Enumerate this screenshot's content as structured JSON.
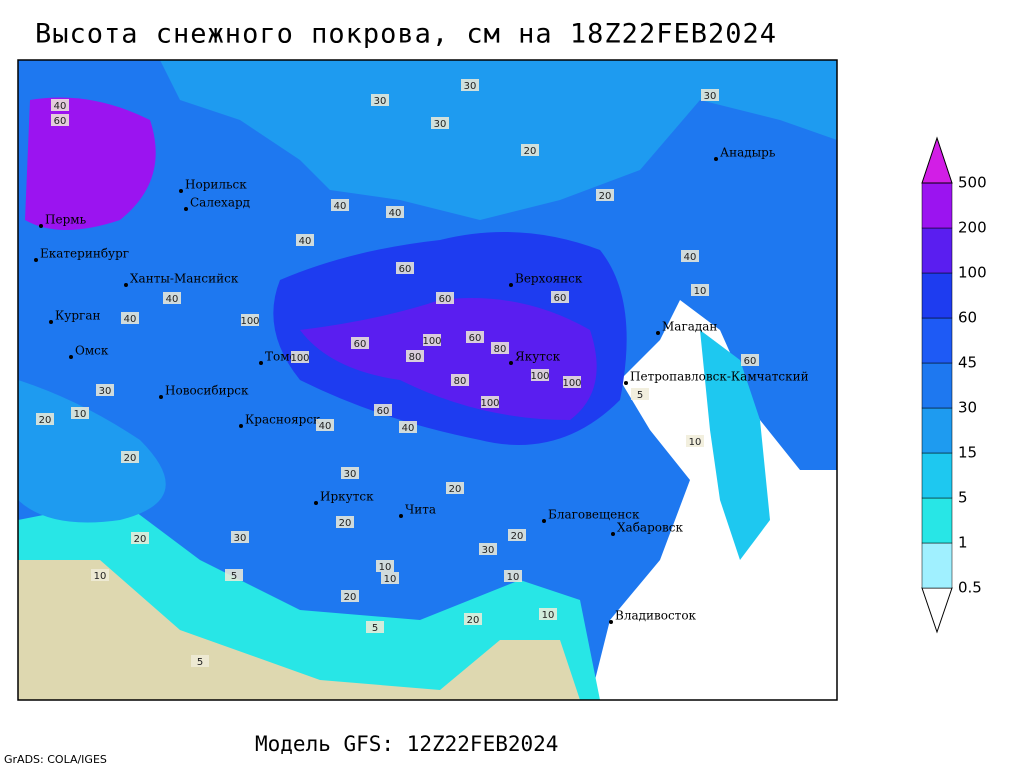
{
  "header": {
    "title": "Высота снежного покрова, см на 18Z22FEB2024"
  },
  "footer": {
    "model": "Модель GFS: 12Z22FEB2024",
    "credit": "GrADS: COLA/IGES"
  },
  "legend": {
    "levels": [
      0.5,
      1,
      5,
      15,
      30,
      45,
      60,
      100,
      200,
      500
    ],
    "colors": [
      "#ffffff",
      "#a0f0ff",
      "#28e6e6",
      "#1ec8f0",
      "#1e9bf0",
      "#1e78f0",
      "#1e5af5",
      "#1e3cf0",
      "#5a1ef0",
      "#9b14f0",
      "#d21ee6"
    ]
  },
  "cities": [
    "Норильск",
    "Салехард",
    "Пермь",
    "Екатеринбург",
    "Ханты-Мансийск",
    "Курган",
    "Омск",
    "Новосибирск",
    "Томск",
    "Красноярск",
    "Иркутск",
    "Чита",
    "Благовещенск",
    "Хабаровск",
    "Владивосток",
    "Якутск",
    "Верхоянск",
    "Магадан",
    "Петропавловск-Камчатский",
    "Анадырь"
  ],
  "contour_labels": [
    30,
    30,
    30,
    20,
    30,
    20,
    40,
    60,
    100,
    100,
    60,
    40,
    40,
    60,
    80,
    100,
    60,
    100,
    80,
    100,
    60,
    80,
    100,
    40,
    60,
    40,
    20,
    30,
    10,
    20,
    20,
    10,
    20,
    30,
    20,
    10,
    5,
    10,
    5,
    20,
    10,
    20,
    40,
    40,
    30,
    60,
    40,
    10,
    10,
    5,
    60,
    40,
    20,
    30,
    10,
    5
  ]
}
